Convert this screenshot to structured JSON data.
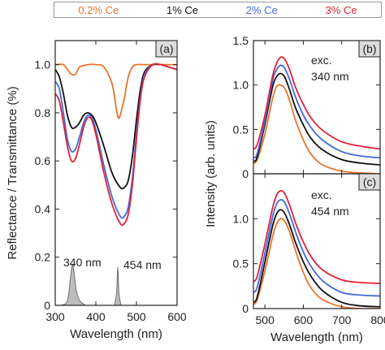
{
  "legend": [
    {
      "label": "0.2% Ce",
      "color": "#e8732c"
    },
    {
      "label": "1% Ce",
      "color": "#111111"
    },
    {
      "label": "2% Ce",
      "color": "#4169e1"
    },
    {
      "label": "3% Ce",
      "color": "#e0223a"
    }
  ],
  "chart_data": [
    {
      "type": "line",
      "panel_label": "(a)",
      "xlabel": "Wavelength (nm)",
      "ylabel": "Reflectance / Transmittance (%)",
      "xlim": [
        300,
        600
      ],
      "ylim": [
        0,
        1.1
      ],
      "xticks": [
        300,
        400,
        500,
        600
      ],
      "yticks": [
        0,
        0.2,
        0.4,
        0.6,
        0.8,
        1.0
      ],
      "ytick_labels": [
        "0",
        "0.2",
        "0.4",
        "0.6",
        "0.8",
        "1.0"
      ],
      "annotations": [
        "340 nm",
        "454 nm"
      ],
      "series": [
        {
          "name": "0.2% Ce",
          "x": [
            300,
            320,
            330,
            340,
            350,
            360,
            380,
            400,
            420,
            440,
            450,
            455,
            460,
            470,
            480,
            490,
            500,
            520,
            550,
            580,
            600
          ],
          "y": [
            1.0,
            1.0,
            0.98,
            0.96,
            0.96,
            0.99,
            1.0,
            1.0,
            0.99,
            0.92,
            0.82,
            0.78,
            0.79,
            0.86,
            0.95,
            0.99,
            1.0,
            1.0,
            1.0,
            1.0,
            1.0
          ]
        },
        {
          "name": "1% Ce",
          "x": [
            300,
            310,
            320,
            330,
            340,
            350,
            360,
            370,
            380,
            390,
            400,
            420,
            440,
            460,
            470,
            480,
            490,
            500,
            510,
            520,
            540,
            560,
            580,
            600
          ],
          "y": [
            0.98,
            0.95,
            0.88,
            0.79,
            0.74,
            0.74,
            0.76,
            0.79,
            0.8,
            0.79,
            0.76,
            0.66,
            0.55,
            0.49,
            0.49,
            0.52,
            0.62,
            0.77,
            0.9,
            0.97,
            1.0,
            1.0,
            0.99,
            0.98
          ]
        },
        {
          "name": "2% Ce",
          "x": [
            300,
            310,
            320,
            330,
            340,
            350,
            360,
            370,
            380,
            390,
            400,
            420,
            440,
            460,
            470,
            480,
            490,
            500,
            510,
            520,
            540,
            560,
            580,
            600
          ],
          "y": [
            0.93,
            0.9,
            0.8,
            0.69,
            0.64,
            0.65,
            0.7,
            0.76,
            0.79,
            0.78,
            0.73,
            0.58,
            0.45,
            0.37,
            0.37,
            0.41,
            0.53,
            0.71,
            0.87,
            0.96,
            1.0,
            1.0,
            0.99,
            0.98
          ]
        },
        {
          "name": "3% Ce",
          "x": [
            300,
            310,
            320,
            330,
            340,
            350,
            360,
            370,
            380,
            390,
            400,
            420,
            440,
            460,
            470,
            480,
            490,
            500,
            510,
            520,
            540,
            560,
            580,
            600
          ],
          "y": [
            0.88,
            0.85,
            0.76,
            0.66,
            0.6,
            0.61,
            0.67,
            0.74,
            0.78,
            0.77,
            0.71,
            0.55,
            0.42,
            0.34,
            0.34,
            0.38,
            0.5,
            0.69,
            0.86,
            0.95,
            1.0,
            1.0,
            0.99,
            0.98
          ]
        }
      ],
      "excitation_peaks": [
        {
          "x": [
            315,
            330,
            338,
            342,
            346,
            352,
            360,
            375
          ],
          "y": [
            0,
            0.02,
            0.12,
            0.17,
            0.14,
            0.06,
            0.02,
            0
          ]
        },
        {
          "x": [
            446,
            451,
            454,
            457,
            462
          ],
          "y": [
            0,
            0.05,
            0.16,
            0.05,
            0
          ]
        }
      ]
    },
    {
      "type": "line",
      "panel_label": "(b)",
      "annotation": "exc.\n340 nm",
      "ylabel": "Intensity (arb. units)",
      "xlim": [
        470,
        800
      ],
      "ylim": [
        0,
        1.5
      ],
      "yticks": [
        0,
        0.5,
        1.0,
        1.5
      ],
      "ytick_labels": [
        "0",
        "0.5",
        "1.0",
        "1.5"
      ],
      "series": [
        {
          "name": "0.2% Ce",
          "x": [
            470,
            480,
            500,
            520,
            530,
            540,
            550,
            560,
            570,
            580,
            600,
            620,
            650,
            700,
            750,
            800
          ],
          "y": [
            0.12,
            0.16,
            0.45,
            0.85,
            0.98,
            1.0,
            0.97,
            0.88,
            0.74,
            0.6,
            0.38,
            0.22,
            0.1,
            0.03,
            0.01,
            0.0
          ]
        },
        {
          "name": "1% Ce",
          "x": [
            470,
            480,
            500,
            520,
            530,
            540,
            550,
            560,
            570,
            580,
            600,
            620,
            650,
            700,
            750,
            800
          ],
          "y": [
            0.14,
            0.19,
            0.56,
            0.98,
            1.09,
            1.13,
            1.1,
            1.0,
            0.87,
            0.74,
            0.55,
            0.4,
            0.27,
            0.16,
            0.12,
            0.1
          ]
        },
        {
          "name": "2% Ce",
          "x": [
            470,
            480,
            500,
            520,
            530,
            540,
            550,
            560,
            570,
            580,
            600,
            620,
            650,
            700,
            750,
            800
          ],
          "y": [
            0.18,
            0.23,
            0.6,
            1.05,
            1.17,
            1.22,
            1.2,
            1.11,
            0.99,
            0.86,
            0.66,
            0.52,
            0.38,
            0.25,
            0.2,
            0.18
          ]
        },
        {
          "name": "3% Ce",
          "x": [
            470,
            480,
            500,
            520,
            530,
            540,
            550,
            560,
            570,
            580,
            600,
            620,
            650,
            700,
            750,
            800
          ],
          "y": [
            0.28,
            0.33,
            0.66,
            1.1,
            1.24,
            1.31,
            1.3,
            1.22,
            1.1,
            0.97,
            0.78,
            0.63,
            0.49,
            0.36,
            0.31,
            0.28
          ]
        }
      ]
    },
    {
      "type": "line",
      "panel_label": "(c)",
      "annotation": "exc.\n454 nm",
      "xlabel": "Wavelength (nm)",
      "xlim": [
        470,
        800
      ],
      "ylim": [
        0,
        1.5
      ],
      "xticks": [
        500,
        600,
        700,
        800
      ],
      "yticks": [
        0,
        0.5,
        1.0
      ],
      "ytick_labels": [
        "0",
        "0.5",
        "1.0"
      ],
      "series": [
        {
          "name": "0.2% Ce",
          "x": [
            470,
            480,
            500,
            520,
            530,
            540,
            550,
            560,
            570,
            580,
            600,
            620,
            650,
            700,
            750,
            800
          ],
          "y": [
            0.05,
            0.1,
            0.42,
            0.8,
            0.94,
            1.0,
            0.98,
            0.9,
            0.78,
            0.64,
            0.4,
            0.23,
            0.1,
            0.02,
            0.0,
            0.0
          ]
        },
        {
          "name": "1% Ce",
          "x": [
            470,
            480,
            500,
            520,
            530,
            540,
            550,
            560,
            570,
            580,
            600,
            620,
            650,
            700,
            750,
            800
          ],
          "y": [
            0.07,
            0.13,
            0.52,
            0.92,
            1.05,
            1.1,
            1.07,
            0.98,
            0.86,
            0.73,
            0.52,
            0.36,
            0.2,
            0.07,
            0.03,
            0.02
          ]
        },
        {
          "name": "2% Ce",
          "x": [
            470,
            480,
            500,
            520,
            530,
            540,
            550,
            560,
            570,
            580,
            600,
            620,
            650,
            700,
            750,
            800
          ],
          "y": [
            0.18,
            0.24,
            0.62,
            1.02,
            1.16,
            1.21,
            1.19,
            1.1,
            0.98,
            0.85,
            0.63,
            0.47,
            0.31,
            0.18,
            0.15,
            0.14
          ]
        },
        {
          "name": "3% Ce",
          "x": [
            470,
            480,
            500,
            520,
            530,
            540,
            550,
            560,
            570,
            580,
            600,
            620,
            650,
            700,
            750,
            800
          ],
          "y": [
            0.3,
            0.36,
            0.72,
            1.12,
            1.26,
            1.31,
            1.29,
            1.2,
            1.08,
            0.95,
            0.74,
            0.58,
            0.43,
            0.32,
            0.29,
            0.28
          ]
        }
      ]
    }
  ]
}
